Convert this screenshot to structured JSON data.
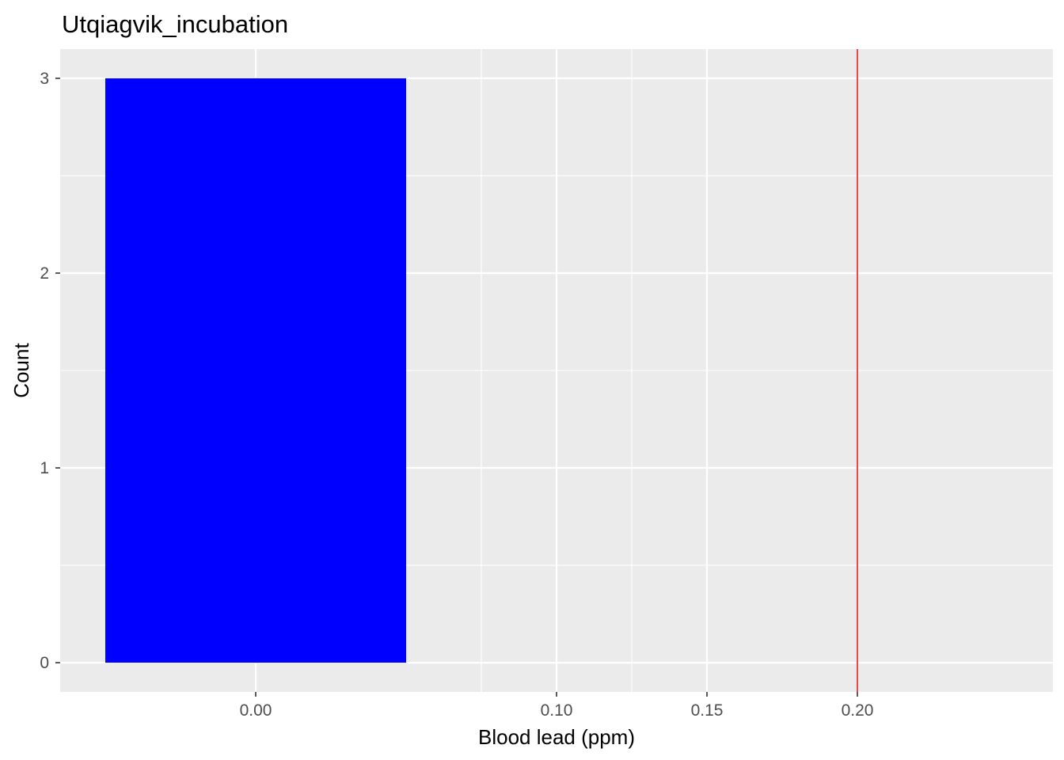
{
  "chart_data": {
    "type": "bar",
    "title": "Utqiagvik_incubation",
    "xlabel": "Blood lead (ppm)",
    "ylabel": "Count",
    "bars": [
      {
        "x0": -0.05,
        "x1": 0.05,
        "count": 3
      }
    ],
    "xlim": [
      -0.065,
      0.265
    ],
    "ylim": [
      -0.15,
      3.15
    ],
    "x_ticks": [
      0.0,
      0.1,
      0.15,
      0.2
    ],
    "x_tick_labels": [
      "0.00",
      "0.10",
      "0.15",
      "0.20"
    ],
    "x_minor_breaks": [
      0.075,
      0.125
    ],
    "y_ticks": [
      0,
      1,
      2,
      3
    ],
    "y_tick_labels": [
      "0",
      "1",
      "2",
      "3"
    ],
    "y_minor_breaks": [
      0.5,
      1.5,
      2.5
    ],
    "reference_line": {
      "x": 0.2,
      "color": "#e41a1c"
    },
    "grid": true,
    "legend": "none",
    "colors": {
      "bar_fill": "#0000ff",
      "panel_background": "#ebebeb",
      "grid_line": "#ffffff",
      "tick_mark": "#333333",
      "tick_label": "#4d4d4d"
    }
  }
}
